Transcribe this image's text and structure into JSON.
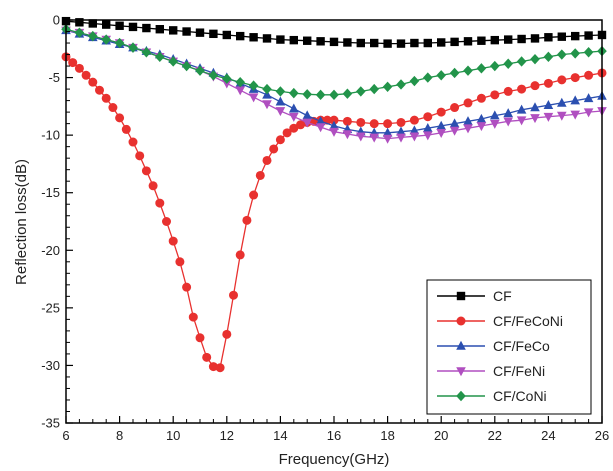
{
  "chart_data": {
    "type": "line",
    "xlabel": "Frequency(GHz)",
    "ylabel": "Reflection loss(dB)",
    "xlim": [
      6,
      26
    ],
    "ylim": [
      -35,
      0
    ],
    "xticks": [
      6,
      8,
      10,
      12,
      14,
      16,
      18,
      20,
      22,
      24,
      26
    ],
    "yticks": [
      0,
      -5,
      -10,
      -15,
      -20,
      -25,
      -30,
      -35
    ],
    "grid": false,
    "legend_position": "bottom-right",
    "series": [
      {
        "name": "CF",
        "color": "#000000",
        "marker": "square",
        "x": [
          6,
          6.5,
          7,
          7.5,
          8,
          8.5,
          9,
          9.5,
          10,
          10.5,
          11,
          11.5,
          12,
          12.5,
          13,
          13.5,
          14,
          14.5,
          15,
          15.5,
          16,
          16.5,
          17,
          17.5,
          18,
          18.5,
          19,
          19.5,
          20,
          20.5,
          21,
          21.5,
          22,
          22.5,
          23,
          23.5,
          24,
          24.5,
          25,
          25.5,
          26
        ],
        "y": [
          -0.1,
          -0.2,
          -0.3,
          -0.4,
          -0.5,
          -0.6,
          -0.7,
          -0.8,
          -0.9,
          -1.0,
          -1.1,
          -1.2,
          -1.3,
          -1.4,
          -1.5,
          -1.6,
          -1.7,
          -1.75,
          -1.8,
          -1.85,
          -1.9,
          -1.95,
          -2.0,
          -2.0,
          -2.05,
          -2.05,
          -2.0,
          -2.0,
          -1.95,
          -1.9,
          -1.85,
          -1.8,
          -1.75,
          -1.7,
          -1.65,
          -1.6,
          -1.5,
          -1.45,
          -1.4,
          -1.35,
          -1.3
        ]
      },
      {
        "name": "CF/FeCoNi",
        "color": "#e8312f",
        "marker": "circle",
        "x": [
          6,
          6.25,
          6.5,
          6.75,
          7,
          7.25,
          7.5,
          7.75,
          8,
          8.25,
          8.5,
          8.75,
          9,
          9.25,
          9.5,
          9.75,
          10,
          10.25,
          10.5,
          10.75,
          11,
          11.25,
          11.5,
          11.75,
          12,
          12.25,
          12.5,
          12.75,
          13,
          13.25,
          13.5,
          13.75,
          14,
          14.25,
          14.5,
          14.75,
          15,
          15.25,
          15.5,
          15.75,
          16,
          16.5,
          17,
          17.5,
          18,
          18.5,
          19,
          19.5,
          20,
          20.5,
          21,
          21.5,
          22,
          22.5,
          23,
          23.5,
          24,
          24.5,
          25,
          25.5,
          26
        ],
        "y": [
          -3.2,
          -3.7,
          -4.2,
          -4.8,
          -5.4,
          -6.1,
          -6.8,
          -7.6,
          -8.5,
          -9.5,
          -10.6,
          -11.8,
          -13.1,
          -14.4,
          -15.9,
          -17.5,
          -19.2,
          -21.0,
          -23.2,
          -25.8,
          -27.6,
          -29.3,
          -30.1,
          -30.2,
          -27.3,
          -23.9,
          -20.4,
          -17.4,
          -15.2,
          -13.5,
          -12.2,
          -11.2,
          -10.4,
          -9.8,
          -9.4,
          -9.1,
          -8.9,
          -8.8,
          -8.7,
          -8.7,
          -8.7,
          -8.8,
          -8.9,
          -9.0,
          -9.0,
          -8.9,
          -8.7,
          -8.4,
          -8.0,
          -7.6,
          -7.2,
          -6.8,
          -6.5,
          -6.2,
          -6.0,
          -5.7,
          -5.5,
          -5.2,
          -5.0,
          -4.8,
          -4.6
        ]
      },
      {
        "name": "CF/FeCo",
        "color": "#2b4fb0",
        "marker": "triangle-up",
        "x": [
          6,
          6.5,
          7,
          7.5,
          8,
          8.5,
          9,
          9.5,
          10,
          10.5,
          11,
          11.5,
          12,
          12.5,
          13,
          13.5,
          14,
          14.5,
          15,
          15.5,
          16,
          16.5,
          17,
          17.5,
          18,
          18.5,
          19,
          19.5,
          20,
          20.5,
          21,
          21.5,
          22,
          22.5,
          23,
          23.5,
          24,
          24.5,
          25,
          25.5,
          26
        ],
        "y": [
          -0.9,
          -1.2,
          -1.5,
          -1.8,
          -2.1,
          -2.4,
          -2.7,
          -3.0,
          -3.4,
          -3.8,
          -4.2,
          -4.6,
          -5.0,
          -5.5,
          -6.0,
          -6.5,
          -7.1,
          -7.7,
          -8.3,
          -8.8,
          -9.2,
          -9.5,
          -9.7,
          -9.8,
          -9.8,
          -9.7,
          -9.6,
          -9.4,
          -9.2,
          -9.0,
          -8.8,
          -8.6,
          -8.3,
          -8.1,
          -7.8,
          -7.6,
          -7.4,
          -7.2,
          -7.0,
          -6.8,
          -6.6
        ]
      },
      {
        "name": "CF/FeNi",
        "color": "#b04fc0",
        "marker": "triangle-down",
        "x": [
          6,
          6.5,
          7,
          7.5,
          8,
          8.5,
          9,
          9.5,
          10,
          10.5,
          11,
          11.5,
          12,
          12.5,
          13,
          13.5,
          14,
          14.5,
          15,
          15.5,
          16,
          16.5,
          17,
          17.5,
          18,
          18.5,
          19,
          19.5,
          20,
          20.5,
          21,
          21.5,
          22,
          22.5,
          23,
          23.5,
          24,
          24.5,
          25,
          25.5,
          26
        ],
        "y": [
          -0.9,
          -1.1,
          -1.4,
          -1.7,
          -2.0,
          -2.4,
          -2.8,
          -3.2,
          -3.6,
          -4.0,
          -4.4,
          -4.9,
          -5.5,
          -6.1,
          -6.7,
          -7.3,
          -7.9,
          -8.4,
          -8.9,
          -9.3,
          -9.7,
          -9.9,
          -10.1,
          -10.2,
          -10.3,
          -10.2,
          -10.1,
          -10.0,
          -9.8,
          -9.6,
          -9.4,
          -9.2,
          -9.0,
          -8.8,
          -8.7,
          -8.5,
          -8.4,
          -8.3,
          -8.2,
          -8.0,
          -7.9
        ]
      },
      {
        "name": "CF/CoNi",
        "color": "#22944a",
        "marker": "diamond",
        "x": [
          6,
          6.5,
          7,
          7.5,
          8,
          8.5,
          9,
          9.5,
          10,
          10.5,
          11,
          11.5,
          12,
          12.5,
          13,
          13.5,
          14,
          14.5,
          15,
          15.5,
          16,
          16.5,
          17,
          17.5,
          18,
          18.5,
          19,
          19.5,
          20,
          20.5,
          21,
          21.5,
          22,
          22.5,
          23,
          23.5,
          24,
          24.5,
          25,
          25.5,
          26
        ],
        "y": [
          -0.8,
          -1.1,
          -1.4,
          -1.7,
          -2.0,
          -2.4,
          -2.8,
          -3.2,
          -3.6,
          -4.0,
          -4.4,
          -4.8,
          -5.1,
          -5.4,
          -5.7,
          -6.0,
          -6.2,
          -6.35,
          -6.45,
          -6.5,
          -6.5,
          -6.4,
          -6.2,
          -6.0,
          -5.8,
          -5.6,
          -5.3,
          -5.0,
          -4.8,
          -4.6,
          -4.4,
          -4.2,
          -4.0,
          -3.8,
          -3.6,
          -3.4,
          -3.2,
          -3.0,
          -2.9,
          -2.8,
          -2.7
        ]
      }
    ]
  }
}
